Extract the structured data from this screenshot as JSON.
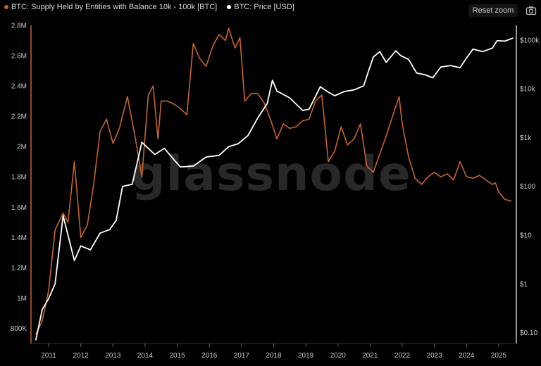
{
  "legend": {
    "supply_label": "BTC: Supply Held by Entities with Balance 10k - 100k [BTC]",
    "price_label": "BTC: Price [USD]"
  },
  "toolbar": {
    "reset_zoom_label": "Reset zoom",
    "camera_icon": "camera-icon"
  },
  "watermark": "glassnode",
  "colors": {
    "supply": "#c8642a",
    "price": "#ffffff",
    "background": "#000000"
  },
  "chart_data": {
    "type": "line",
    "x_axis": {
      "type": "date",
      "range": [
        2010.45,
        2025.55
      ],
      "tick_labels": [
        "2011",
        "2012",
        "2013",
        "2014",
        "2015",
        "2016",
        "2017",
        "2018",
        "2019",
        "2020",
        "2021",
        "2022",
        "2023",
        "2024",
        "2025"
      ]
    },
    "y_left": {
      "range": [
        700000,
        2800000
      ],
      "ticks": [
        800000,
        1000000,
        1200000,
        1400000,
        1600000,
        1800000,
        2000000,
        2200000,
        2400000,
        2600000,
        2800000
      ],
      "tick_labels": [
        "800K",
        "1M",
        "1.2M",
        "1.4M",
        "1.6M",
        "1.8M",
        "2M",
        "2.2M",
        "2.4M",
        "2.6M",
        "2.8M"
      ]
    },
    "y_right": {
      "scale": "log",
      "range": [
        0.06,
        200000
      ],
      "ticks": [
        0.1,
        1,
        10,
        100,
        1000,
        10000,
        100000
      ],
      "tick_labels": [
        "$0.10",
        "$1",
        "$10",
        "$100",
        "$1k",
        "$10k",
        "$100k"
      ]
    },
    "grid": false,
    "legend_position": "top-left",
    "series": [
      {
        "name": "BTC: Supply Held by Entities with Balance 10k - 100k [BTC]",
        "axis": "left",
        "x": [
          2010.6,
          2010.8,
          2011.0,
          2011.2,
          2011.45,
          2011.6,
          2011.8,
          2012.0,
          2012.2,
          2012.4,
          2012.6,
          2012.8,
          2013.0,
          2013.2,
          2013.45,
          2013.7,
          2013.9,
          2014.1,
          2014.25,
          2014.4,
          2014.5,
          2014.7,
          2014.9,
          2015.1,
          2015.3,
          2015.5,
          2015.7,
          2015.9,
          2016.1,
          2016.3,
          2016.5,
          2016.6,
          2016.8,
          2016.95,
          2017.1,
          2017.3,
          2017.5,
          2017.7,
          2017.9,
          2018.1,
          2018.3,
          2018.5,
          2018.7,
          2018.9,
          2019.1,
          2019.3,
          2019.5,
          2019.7,
          2019.9,
          2020.1,
          2020.3,
          2020.5,
          2020.7,
          2020.9,
          2021.1,
          2021.3,
          2021.5,
          2021.7,
          2021.9,
          2022.0,
          2022.2,
          2022.4,
          2022.6,
          2022.8,
          2023.0,
          2023.2,
          2023.4,
          2023.6,
          2023.8,
          2024.0,
          2024.2,
          2024.4,
          2024.6,
          2024.8,
          2024.9,
          2025.0,
          2025.2,
          2025.4
        ],
        "y": [
          760000,
          850000,
          1050000,
          1450000,
          1560000,
          1500000,
          1900000,
          1400000,
          1480000,
          1750000,
          2100000,
          2180000,
          2020000,
          2120000,
          2330000,
          2050000,
          1800000,
          2340000,
          2400000,
          2050000,
          2300000,
          2300000,
          2280000,
          2250000,
          2210000,
          2680000,
          2580000,
          2530000,
          2660000,
          2740000,
          2700000,
          2780000,
          2650000,
          2720000,
          2300000,
          2350000,
          2350000,
          2290000,
          2180000,
          2050000,
          2150000,
          2120000,
          2130000,
          2170000,
          2180000,
          2300000,
          2340000,
          1900000,
          1970000,
          2130000,
          2010000,
          2050000,
          2150000,
          1870000,
          1830000,
          1950000,
          2070000,
          2200000,
          2330000,
          2150000,
          1930000,
          1790000,
          1750000,
          1800000,
          1830000,
          1800000,
          1820000,
          1780000,
          1900000,
          1800000,
          1790000,
          1810000,
          1780000,
          1750000,
          1760000,
          1700000,
          1650000,
          1640000
        ]
      },
      {
        "name": "BTC: Price [USD]",
        "axis": "right",
        "x": [
          2010.6,
          2010.8,
          2011.0,
          2011.2,
          2011.45,
          2011.6,
          2011.8,
          2012.0,
          2012.3,
          2012.6,
          2012.9,
          2013.1,
          2013.3,
          2013.6,
          2013.9,
          2014.1,
          2014.3,
          2014.6,
          2014.9,
          2015.1,
          2015.5,
          2015.9,
          2016.3,
          2016.6,
          2016.9,
          2017.2,
          2017.5,
          2017.8,
          2017.96,
          2018.1,
          2018.5,
          2018.9,
          2019.1,
          2019.45,
          2019.7,
          2019.9,
          2020.2,
          2020.5,
          2020.8,
          2020.95,
          2021.1,
          2021.3,
          2021.5,
          2021.8,
          2021.95,
          2022.2,
          2022.45,
          2022.7,
          2022.95,
          2023.2,
          2023.5,
          2023.8,
          2024.0,
          2024.2,
          2024.5,
          2024.8,
          2024.95,
          2025.2,
          2025.45
        ],
        "y": [
          0.07,
          0.3,
          0.5,
          1,
          25,
          10,
          3,
          6,
          5,
          11,
          13,
          20,
          100,
          110,
          800,
          600,
          450,
          600,
          350,
          250,
          260,
          400,
          430,
          650,
          750,
          1100,
          2500,
          5000,
          15000,
          9000,
          6500,
          3600,
          3800,
          11000,
          8500,
          7200,
          8800,
          9500,
          11500,
          23000,
          45000,
          58000,
          35000,
          60000,
          48000,
          40000,
          21000,
          19500,
          16800,
          28000,
          30000,
          27000,
          43000,
          65000,
          58000,
          68000,
          97000,
          95000,
          110000
        ]
      }
    ]
  }
}
